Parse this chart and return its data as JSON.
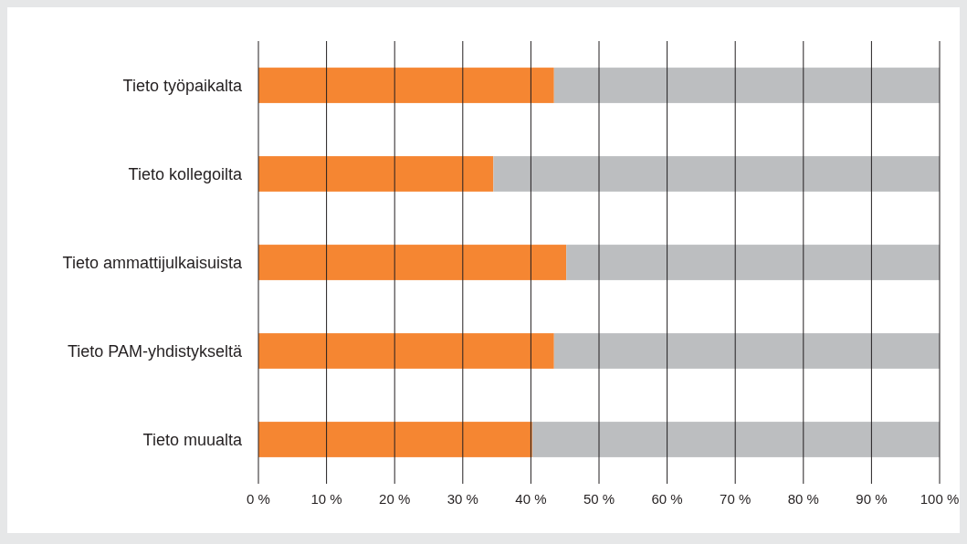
{
  "chart_data": {
    "type": "bar",
    "orientation": "horizontal",
    "stacked": true,
    "categories": [
      "Tieto työpaikalta",
      "Tieto kollegoilta",
      "Tieto ammattijulkaisuista",
      "Tieto PAM-yhdistykseltä",
      "Tieto muualta"
    ],
    "series": [
      {
        "color": "#f58632",
        "values": [
          43.4,
          34.5,
          45.2,
          43.4,
          40.2
        ]
      },
      {
        "color": "#bcbec0",
        "values": [
          56.6,
          65.5,
          54.8,
          56.6,
          59.8
        ]
      }
    ],
    "xlim": [
      0,
      100
    ],
    "xticks": [
      {
        "value": 0,
        "label": "0 %"
      },
      {
        "value": 10,
        "label": "10 %"
      },
      {
        "value": 20,
        "label": "20 %"
      },
      {
        "value": 30,
        "label": "30 %"
      },
      {
        "value": 40,
        "label": "40 %"
      },
      {
        "value": 50,
        "label": "50 %"
      },
      {
        "value": 60,
        "label": "60 %"
      },
      {
        "value": 70,
        "label": "70 %"
      },
      {
        "value": 80,
        "label": "80 %"
      },
      {
        "value": 90,
        "label": "90 %"
      },
      {
        "value": 100,
        "label": "100 %"
      }
    ],
    "grid": "x"
  }
}
